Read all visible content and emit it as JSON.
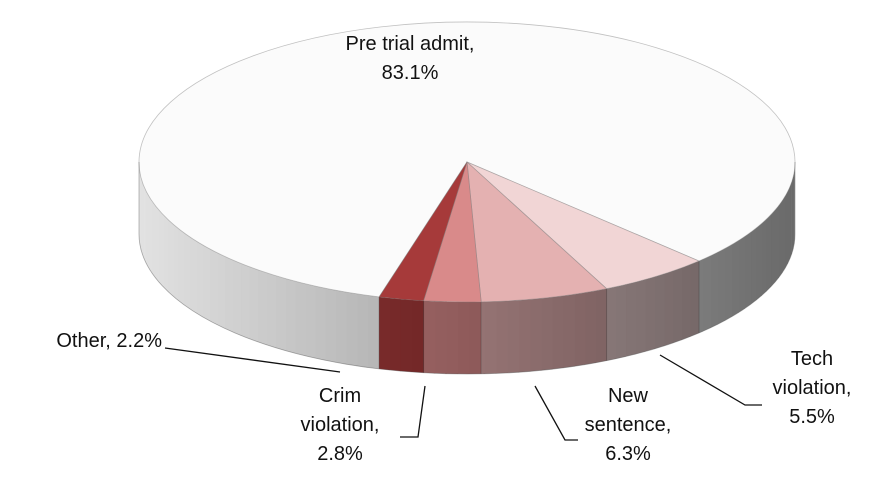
{
  "chart_data": {
    "type": "pie3d",
    "values": [
      83.1,
      5.5,
      6.3,
      2.8,
      2.2
    ],
    "value_labels": [
      "Pre trial admit, 83.1%",
      "Tech violation, 5.5%",
      "New sentence, 6.3%",
      "Crim violation, 2.8%",
      "Other, 2.2%"
    ],
    "colors": [
      "#fbfbfb",
      "#f1d5d5",
      "#e4b1b1",
      "#d98a8a",
      "#a63a3a"
    ]
  }
}
